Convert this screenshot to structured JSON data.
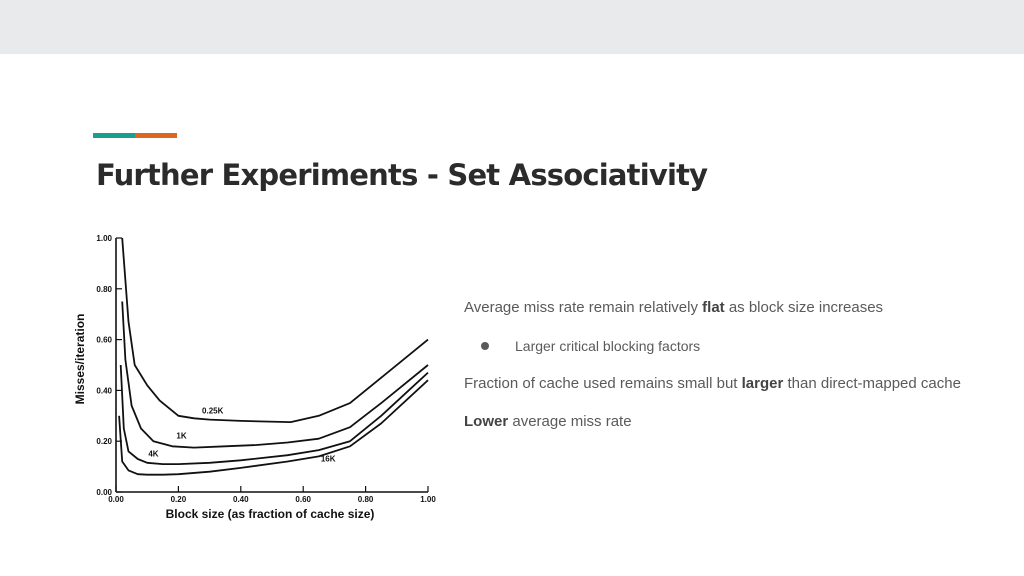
{
  "slide": {
    "title": "Further Experiments - Set Associativity",
    "accent_colors": [
      "#1a9e8e",
      "#e0651e"
    ]
  },
  "text": {
    "p1": {
      "pre": "Average miss rate remain relatively ",
      "bold": "flat",
      "post": " as block size increases"
    },
    "sub1": "Larger critical blocking factors",
    "p2": {
      "pre": "Fraction of cache used remains small but ",
      "bold": "larger",
      "post": " than direct-mapped cache"
    },
    "p3": {
      "bold": "Lower",
      "post": " average miss rate"
    }
  },
  "chart_data": {
    "type": "line",
    "xlabel": "Block size (as fraction of cache size)",
    "ylabel": "Misses/iteration",
    "xlim": [
      0,
      1
    ],
    "ylim": [
      0,
      1
    ],
    "xticks": [
      "0.00",
      "0.20",
      "0.40",
      "0.60",
      "0.80",
      "1.00"
    ],
    "yticks": [
      "0.00",
      "0.20",
      "0.40",
      "0.60",
      "0.80",
      "1.00"
    ],
    "series": [
      {
        "name": "0.25K",
        "x": [
          0.02,
          0.04,
          0.06,
          0.1,
          0.14,
          0.2,
          0.25,
          0.3,
          0.4,
          0.56,
          0.65,
          0.75,
          0.85,
          1.0
        ],
        "y": [
          1.0,
          0.67,
          0.5,
          0.42,
          0.36,
          0.3,
          0.29,
          0.285,
          0.28,
          0.275,
          0.3,
          0.35,
          0.45,
          0.6
        ]
      },
      {
        "name": "1K",
        "x": [
          0.02,
          0.03,
          0.05,
          0.08,
          0.12,
          0.18,
          0.25,
          0.35,
          0.45,
          0.55,
          0.65,
          0.75,
          0.85,
          1.0
        ],
        "y": [
          0.75,
          0.52,
          0.34,
          0.25,
          0.2,
          0.18,
          0.175,
          0.18,
          0.185,
          0.195,
          0.21,
          0.255,
          0.35,
          0.5
        ]
      },
      {
        "name": "4K",
        "x": [
          0.015,
          0.025,
          0.04,
          0.07,
          0.1,
          0.15,
          0.2,
          0.3,
          0.4,
          0.55,
          0.65,
          0.75,
          0.85,
          1.0
        ],
        "y": [
          0.5,
          0.25,
          0.16,
          0.13,
          0.115,
          0.11,
          0.11,
          0.115,
          0.125,
          0.145,
          0.165,
          0.2,
          0.3,
          0.47
        ]
      },
      {
        "name": "16K",
        "x": [
          0.01,
          0.02,
          0.04,
          0.07,
          0.1,
          0.15,
          0.2,
          0.3,
          0.4,
          0.55,
          0.65,
          0.75,
          0.85,
          1.0
        ],
        "y": [
          0.3,
          0.12,
          0.085,
          0.07,
          0.068,
          0.068,
          0.07,
          0.08,
          0.095,
          0.12,
          0.14,
          0.18,
          0.27,
          0.44
        ]
      }
    ]
  }
}
